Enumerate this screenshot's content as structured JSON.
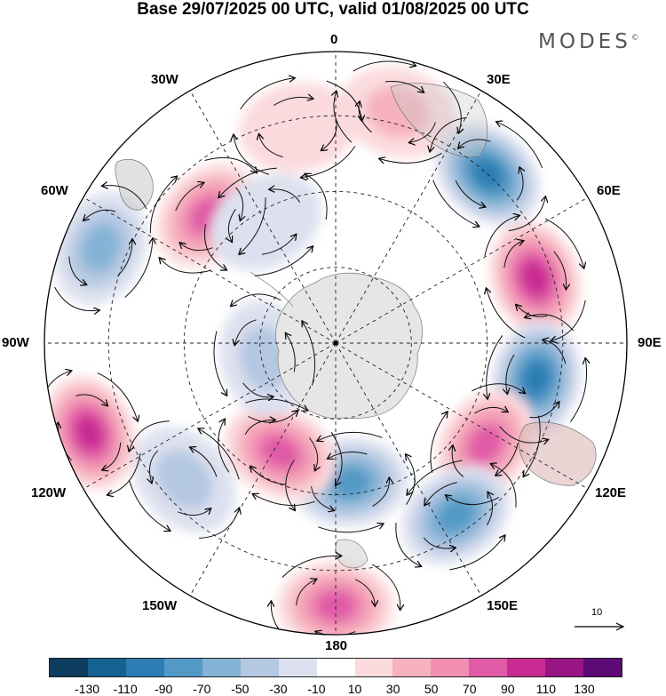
{
  "title": "Base 29/07/2025 00 UTC, valid 01/08/2025 00 UTC",
  "brand": {
    "name": "MODES",
    "mark": "©"
  },
  "longitude_labels": {
    "lon0": "0",
    "lon30e": "30E",
    "lon60e": "60E",
    "lon90e": "90E",
    "lon120e": "120E",
    "lon150e": "150E",
    "lon180": "180",
    "lon150w": "150W",
    "lon120w": "120W",
    "lon90w": "90W",
    "lon60w": "60W",
    "lon30w": "30W"
  },
  "reference_vector": {
    "value": "10"
  },
  "colorbar": {
    "colors": [
      "#0d3c5e",
      "#15618f",
      "#2b7db4",
      "#5399c5",
      "#84b3d6",
      "#b5c8e2",
      "#dde1ef",
      "#ffffff",
      "#fbdadd",
      "#f6b2be",
      "#f08fb2",
      "#e05aa6",
      "#c92b92",
      "#9a1584",
      "#5c0a75"
    ],
    "ticks": [
      "-130",
      "-110",
      "-90",
      "-70",
      "-50",
      "-30",
      "-10",
      "10",
      "30",
      "50",
      "70",
      "90",
      "110",
      "130"
    ]
  },
  "anomalies": [
    {
      "lon": 15,
      "r": 0.82,
      "value": 45
    },
    {
      "lon": 42,
      "r": 0.78,
      "value": -100
    },
    {
      "lon": 72,
      "r": 0.72,
      "value": 115
    },
    {
      "lon": 100,
      "r": 0.7,
      "value": -110
    },
    {
      "lon": 124,
      "r": 0.62,
      "value": 90
    },
    {
      "lon": 145,
      "r": 0.72,
      "value": -85
    },
    {
      "lon": 180,
      "r": 0.9,
      "value": 80
    },
    {
      "lon": 174,
      "r": 0.48,
      "value": -95
    },
    {
      "lon": 207,
      "r": 0.42,
      "value": 85
    },
    {
      "lon": 228,
      "r": 0.7,
      "value": -55
    },
    {
      "lon": 250,
      "r": 0.9,
      "value": 115
    },
    {
      "lon": 258,
      "r": 0.25,
      "value": -40
    },
    {
      "lon": 292,
      "r": 0.87,
      "value": -75
    },
    {
      "lon": 315,
      "r": 0.62,
      "value": 80
    },
    {
      "lon": 330,
      "r": 0.48,
      "value": -25
    },
    {
      "lon": 350,
      "r": 0.75,
      "value": 35
    }
  ]
}
